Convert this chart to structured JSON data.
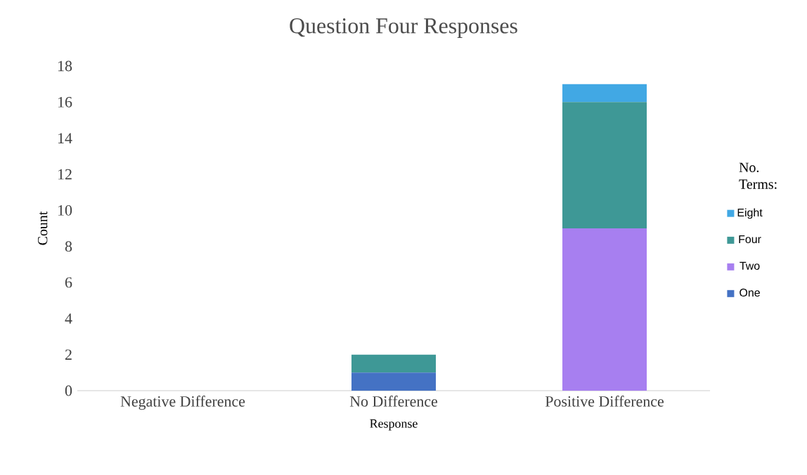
{
  "chart_data": {
    "type": "bar",
    "stacked": true,
    "title": "Question Four Responses",
    "xlabel": "Response",
    "ylabel": "Count",
    "legend_title": "No. Terms:",
    "legend": "right",
    "grid": false,
    "categories": [
      "Negative Difference",
      "No Difference",
      "Positive Difference"
    ],
    "ylim": [
      0,
      18
    ],
    "yticks": [
      0,
      2,
      4,
      6,
      8,
      10,
      12,
      14,
      16,
      18
    ],
    "series": [
      {
        "name": "One",
        "color": "#4472c4",
        "values": [
          0,
          1,
          0
        ]
      },
      {
        "name": "Two",
        "color": "#a77ff0",
        "values": [
          0,
          0,
          9
        ]
      },
      {
        "name": "Four",
        "color": "#3e9896",
        "values": [
          0,
          1,
          7
        ]
      },
      {
        "name": "Eight",
        "color": "#41a8e4",
        "values": [
          0,
          0,
          1
        ]
      }
    ]
  }
}
